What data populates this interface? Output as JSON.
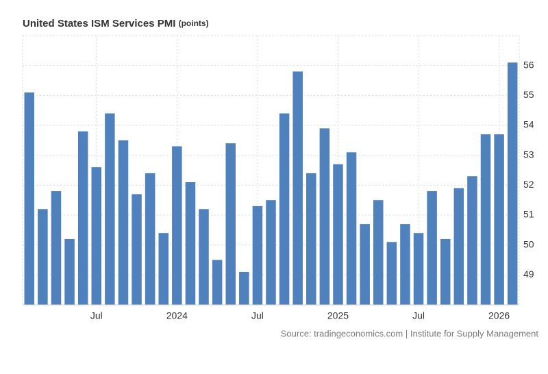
{
  "chart_data": {
    "type": "bar",
    "title": "United States ISM Services PMI",
    "units": "(points)",
    "source": "Source: tradingeconomics.com | Institute for Supply Management",
    "categories": [
      null,
      null,
      null,
      null,
      null,
      "Jul",
      null,
      null,
      null,
      null,
      null,
      "2024",
      null,
      null,
      null,
      null,
      null,
      "Jul",
      null,
      null,
      null,
      null,
      null,
      "2025",
      null,
      null,
      null,
      null,
      null,
      "Jul",
      null,
      null,
      null,
      null,
      null,
      "2026",
      null
    ],
    "values": [
      55.1,
      51.2,
      51.8,
      50.2,
      53.8,
      52.6,
      54.4,
      53.5,
      51.7,
      52.4,
      50.4,
      53.3,
      52.1,
      51.2,
      49.5,
      53.4,
      49.1,
      51.3,
      51.5,
      54.4,
      55.8,
      52.4,
      53.9,
      52.7,
      53.1,
      50.7,
      51.5,
      50.1,
      50.7,
      50.4,
      51.8,
      50.2,
      51.9,
      52.3,
      53.7,
      53.7,
      56.1
    ],
    "color": "#4f81bd",
    "ylim": [
      48,
      57
    ],
    "yticks": [
      49,
      50,
      51,
      52,
      53,
      54,
      55,
      56
    ],
    "grid": true
  }
}
